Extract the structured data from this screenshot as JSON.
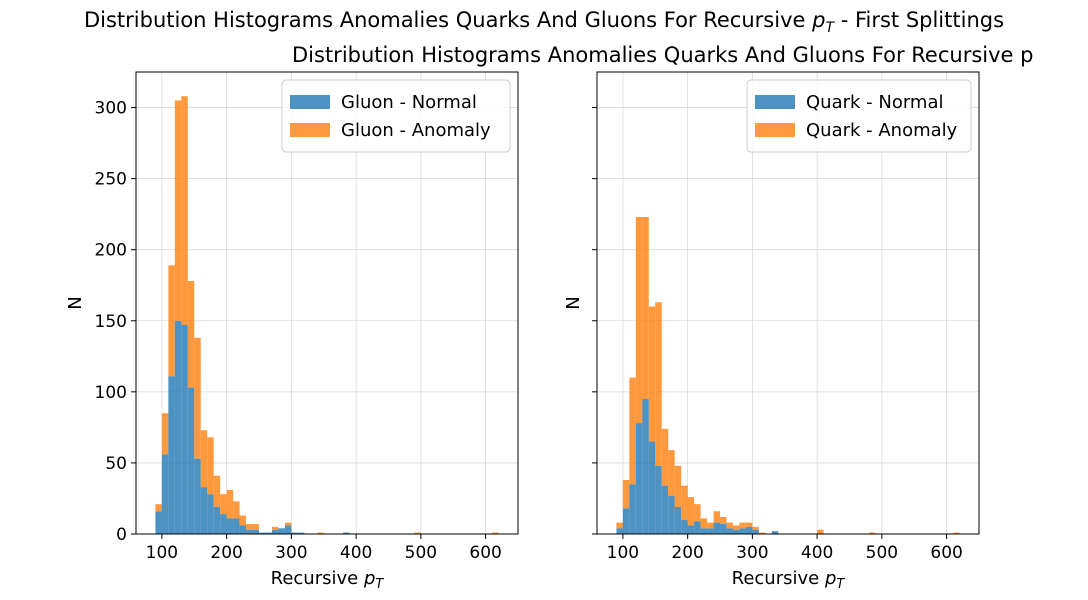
{
  "figure": {
    "suptitle": "Distribution Histograms Anomalies Quarks And Gluons For Recursive p_T - First Splittings",
    "subtitle": "Distribution Histograms Anomalies Quarks And Gluons For Recursive p",
    "colors": {
      "normal": "#1f77b4",
      "anomaly": "#ff7f0e",
      "grid": "#d9d9d9"
    }
  },
  "chart_data": [
    {
      "type": "bar",
      "histtype": "stacked-histogram",
      "xlabel": "Recursive p_T",
      "ylabel": "N",
      "xlim": [
        60,
        650
      ],
      "ylim": [
        0,
        325
      ],
      "xticks": [
        100,
        200,
        300,
        400,
        500,
        600
      ],
      "yticks": [
        0,
        50,
        100,
        150,
        200,
        250,
        300
      ],
      "grid": true,
      "legend_position": "top-right",
      "bin_width": 10,
      "bins": [
        90,
        100,
        110,
        120,
        130,
        140,
        150,
        160,
        170,
        180,
        190,
        200,
        210,
        220,
        230,
        240,
        250,
        260,
        270,
        280,
        290,
        300,
        310,
        340,
        380,
        490,
        610
      ],
      "series": [
        {
          "name": "Gluon - Normal",
          "color": "#1f77b4",
          "values": [
            16,
            56,
            111,
            150,
            147,
            103,
            53,
            33,
            28,
            19,
            14,
            11,
            11,
            6,
            3,
            3,
            1,
            1,
            3,
            4,
            6,
            1,
            1,
            0,
            1,
            0,
            0
          ]
        },
        {
          "name": "Gluon - Anomaly",
          "color": "#ff7f0e",
          "values": [
            5,
            29,
            78,
            155,
            161,
            75,
            85,
            40,
            40,
            22,
            14,
            20,
            12,
            7,
            4,
            4,
            0,
            0,
            2,
            0,
            2,
            0,
            0,
            1,
            0,
            1,
            1
          ]
        }
      ]
    },
    {
      "type": "bar",
      "histtype": "stacked-histogram",
      "xlabel": "Recursive p_T",
      "ylabel": "N",
      "xlim": [
        60,
        650
      ],
      "ylim": [
        0,
        325
      ],
      "xticks": [
        100,
        200,
        300,
        400,
        500,
        600
      ],
      "yticks": [
        0,
        50,
        100,
        150,
        200,
        250,
        300
      ],
      "grid": true,
      "legend_position": "top-right",
      "bin_width": 10,
      "bins": [
        90,
        100,
        110,
        120,
        130,
        140,
        150,
        160,
        170,
        180,
        190,
        200,
        210,
        220,
        230,
        240,
        250,
        260,
        270,
        280,
        290,
        300,
        310,
        330,
        400,
        480,
        610
      ],
      "series": [
        {
          "name": "Quark - Normal",
          "color": "#1f77b4",
          "values": [
            4,
            18,
            35,
            78,
            95,
            65,
            48,
            34,
            27,
            19,
            10,
            6,
            9,
            4,
            4,
            8,
            7,
            4,
            3,
            4,
            5,
            3,
            0,
            2,
            0,
            0,
            0
          ]
        },
        {
          "name": "Quark - Anomaly",
          "color": "#ff7f0e",
          "values": [
            4,
            20,
            75,
            145,
            128,
            95,
            115,
            40,
            32,
            29,
            24,
            20,
            12,
            7,
            4,
            8,
            5,
            4,
            3,
            4,
            3,
            2,
            1,
            0,
            3,
            1,
            1
          ]
        }
      ]
    }
  ]
}
